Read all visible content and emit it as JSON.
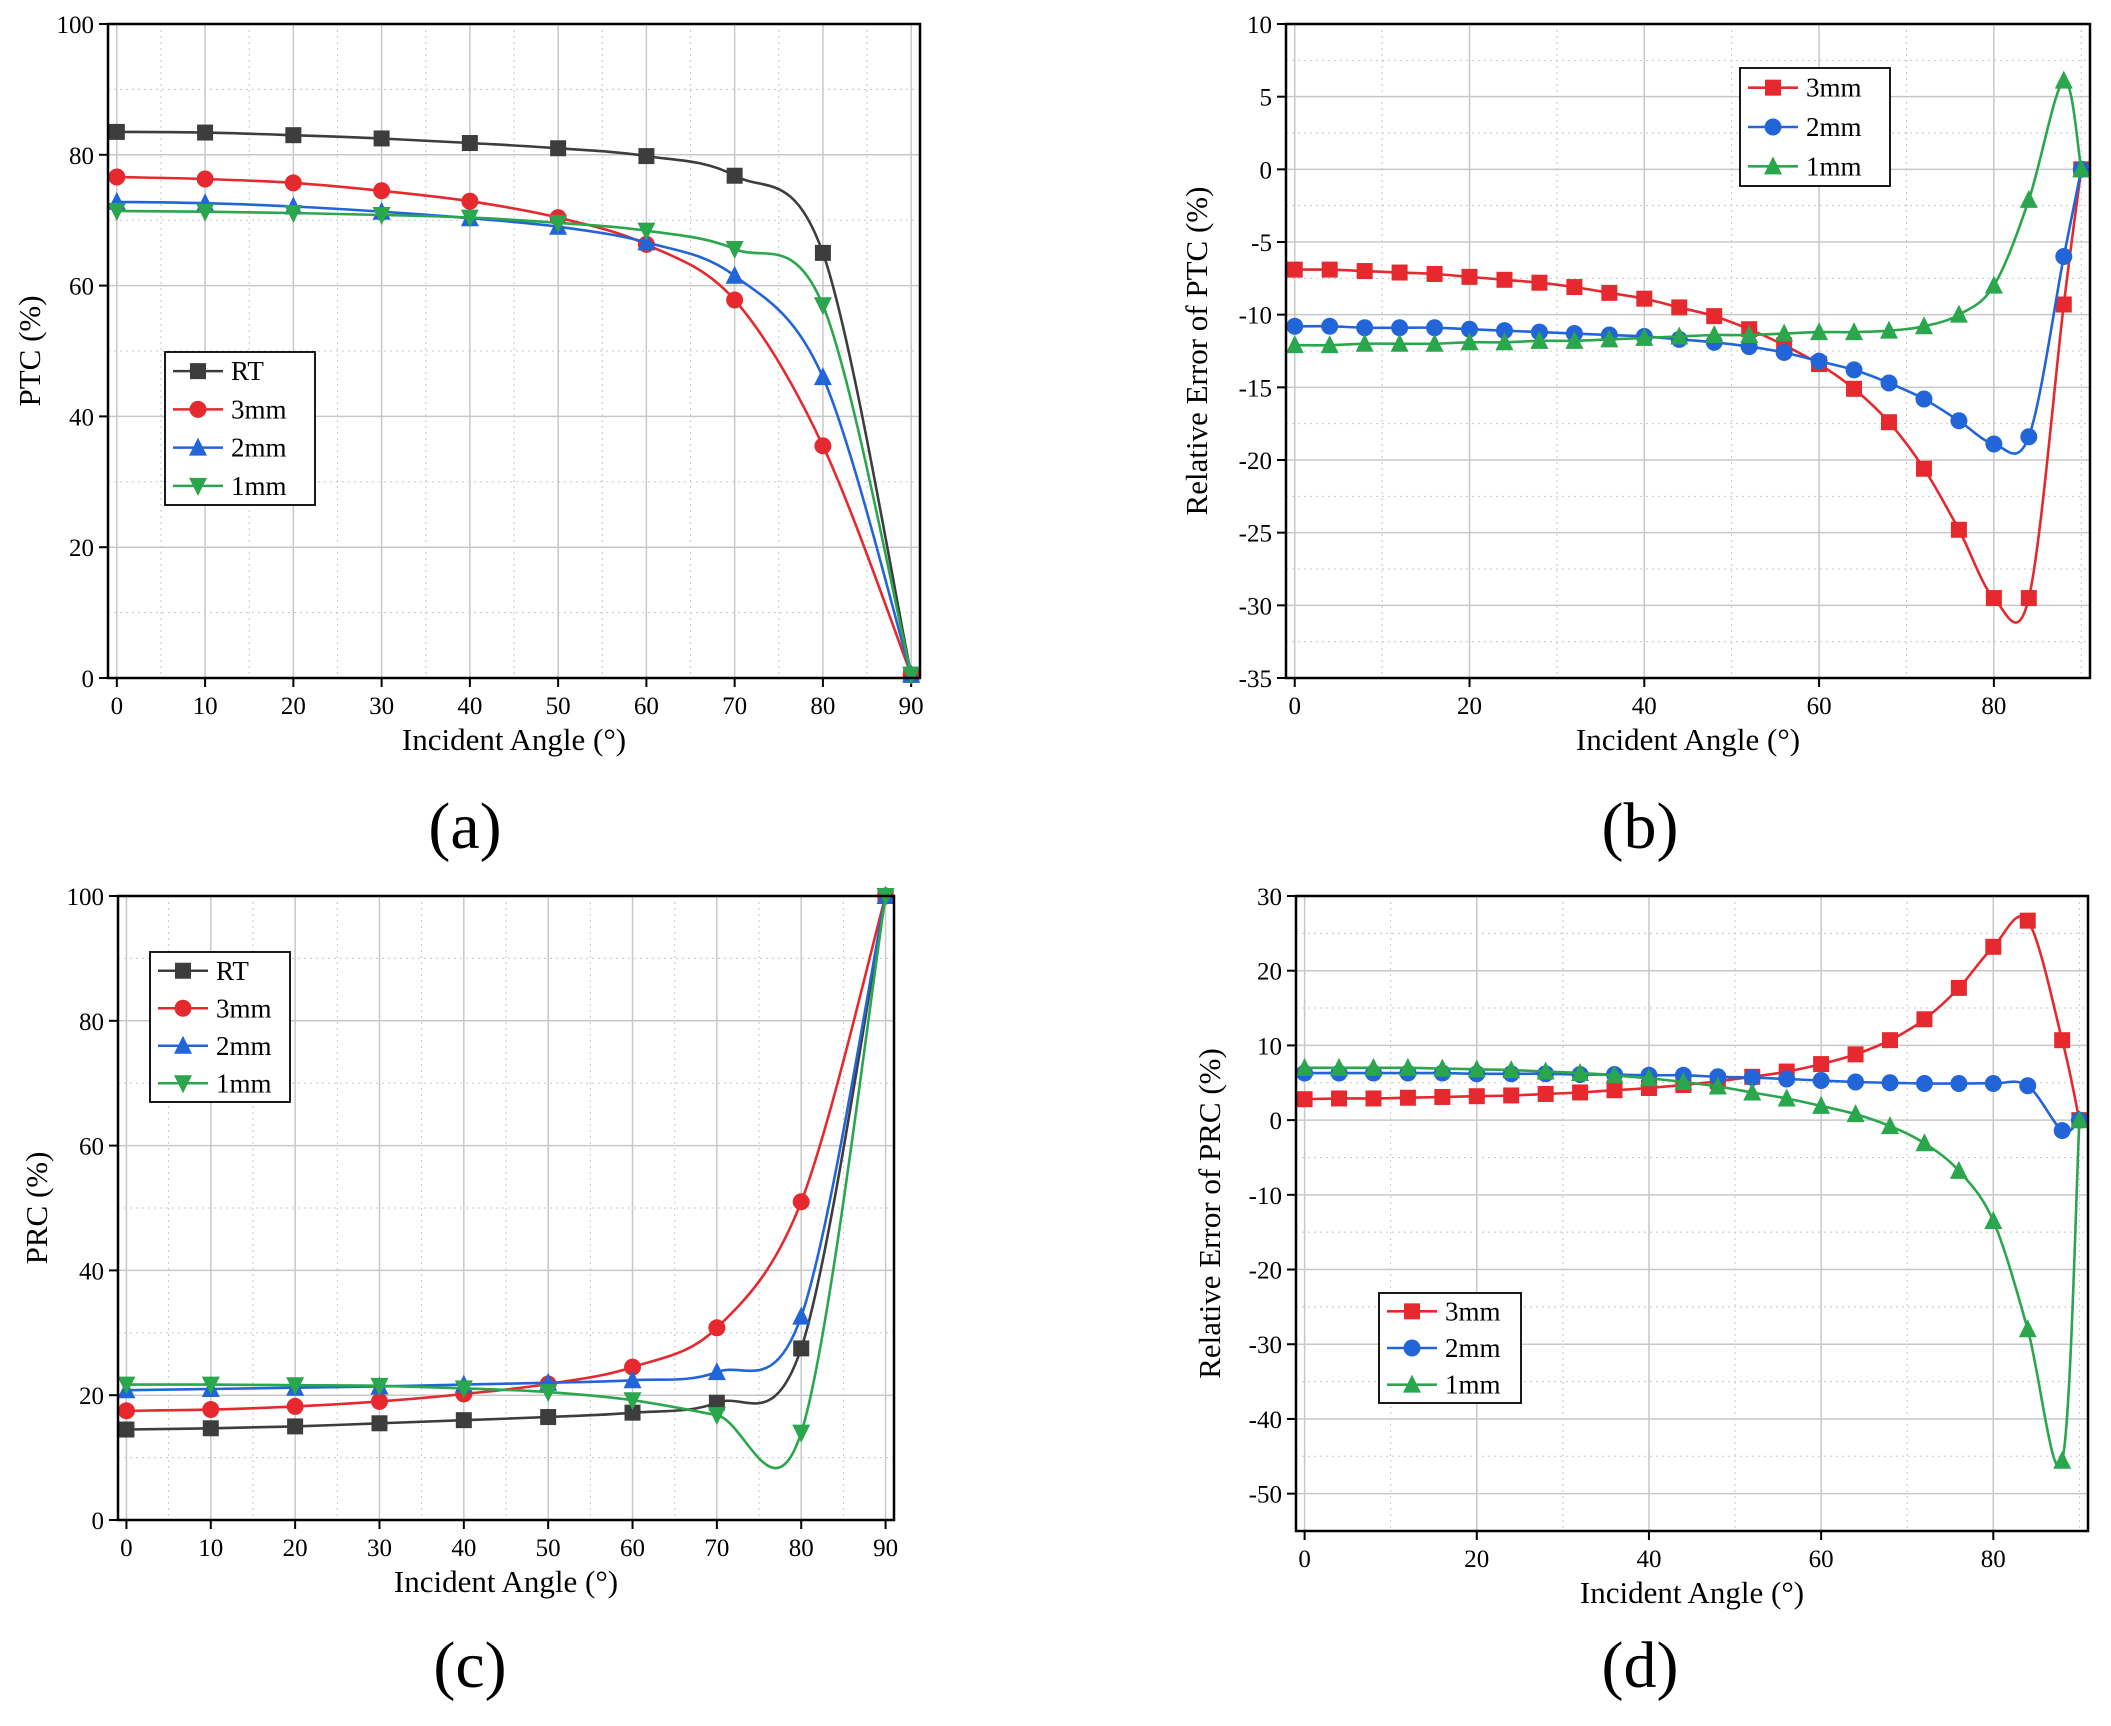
{
  "colors": {
    "RT": "#3d3d3d",
    "3mm": "#e5292e",
    "2mm": "#2265d8",
    "1mm": "#2aa64c",
    "grid": "#c8c8c8"
  },
  "panel_labels": [
    "(a)",
    "(b)",
    "(c)",
    "(d)"
  ],
  "chart_data": [
    {
      "id": "a",
      "type": "line",
      "xlabel": "Incident Angle (°)",
      "ylabel": "PTC (%)",
      "xlim": [
        -1,
        91
      ],
      "ylim": [
        0,
        100
      ],
      "xticks": [
        0,
        10,
        20,
        30,
        40,
        50,
        60,
        70,
        80,
        90
      ],
      "yticks": [
        0,
        20,
        40,
        60,
        80,
        100
      ],
      "legend_position": "middle-left",
      "series": [
        {
          "name": "RT",
          "marker": "square",
          "x": [
            0,
            10,
            20,
            30,
            40,
            50,
            60,
            70,
            80,
            90
          ],
          "y": [
            83.5,
            83.4,
            83,
            82.5,
            81.8,
            81,
            79.8,
            76.8,
            65,
            0.5
          ]
        },
        {
          "name": "3mm",
          "marker": "circle",
          "x": [
            0,
            10,
            20,
            30,
            40,
            50,
            60,
            70,
            80,
            90
          ],
          "y": [
            76.6,
            76.3,
            75.7,
            74.5,
            72.9,
            70.4,
            66.3,
            57.8,
            35.5,
            0.5
          ]
        },
        {
          "name": "2mm",
          "marker": "triangle-up",
          "x": [
            0,
            10,
            20,
            30,
            40,
            50,
            60,
            70,
            80,
            90
          ],
          "y": [
            72.8,
            72.6,
            72.1,
            71.3,
            70.3,
            69,
            66.6,
            61.5,
            46,
            0.5
          ]
        },
        {
          "name": "1mm",
          "marker": "triangle-down",
          "x": [
            0,
            10,
            20,
            30,
            40,
            50,
            60,
            70,
            80,
            90
          ],
          "y": [
            71.4,
            71.3,
            71.1,
            70.8,
            70.4,
            69.6,
            68.4,
            65.6,
            57,
            0.5
          ]
        }
      ]
    },
    {
      "id": "b",
      "type": "line",
      "xlabel": "Incident Angle (°)",
      "ylabel": "Relative Error of PTC (%)",
      "xlim": [
        -1,
        91
      ],
      "ylim": [
        -35,
        10
      ],
      "xticks": [
        0,
        20,
        40,
        60,
        80
      ],
      "yticks": [
        10,
        5,
        0,
        -5,
        -10,
        -15,
        -20,
        -25,
        -30,
        -35
      ],
      "legend_position": "top-right",
      "series": [
        {
          "name": "3mm",
          "marker": "square",
          "x": [
            0,
            4,
            8,
            12,
            16,
            20,
            24,
            28,
            32,
            36,
            40,
            44,
            48,
            52,
            56,
            60,
            64,
            68,
            72,
            76,
            80,
            84,
            88,
            90
          ],
          "y": [
            -6.9,
            -6.9,
            -7,
            -7.1,
            -7.2,
            -7.4,
            -7.6,
            -7.8,
            -8.1,
            -8.5,
            -8.9,
            -9.5,
            -10.1,
            -11,
            -12.1,
            -13.4,
            -15.1,
            -17.4,
            -20.6,
            -24.8,
            -29.5,
            -29.5,
            -9.3,
            0
          ]
        },
        {
          "name": "2mm",
          "marker": "circle",
          "x": [
            0,
            4,
            8,
            12,
            16,
            20,
            24,
            28,
            32,
            36,
            40,
            44,
            48,
            52,
            56,
            60,
            64,
            68,
            72,
            76,
            80,
            84,
            88,
            90
          ],
          "y": [
            -10.8,
            -10.8,
            -10.9,
            -10.9,
            -10.9,
            -11,
            -11.1,
            -11.2,
            -11.3,
            -11.4,
            -11.5,
            -11.7,
            -11.9,
            -12.2,
            -12.6,
            -13.2,
            -13.8,
            -14.7,
            -15.8,
            -17.3,
            -18.9,
            -18.4,
            -6,
            0
          ]
        },
        {
          "name": "1mm",
          "marker": "triangle-up",
          "x": [
            0,
            4,
            8,
            12,
            16,
            20,
            24,
            28,
            32,
            36,
            40,
            44,
            48,
            52,
            56,
            60,
            64,
            68,
            72,
            76,
            80,
            84,
            88,
            90
          ],
          "y": [
            -12.1,
            -12.1,
            -12,
            -12,
            -12,
            -11.9,
            -11.9,
            -11.8,
            -11.8,
            -11.7,
            -11.6,
            -11.5,
            -11.4,
            -11.4,
            -11.3,
            -11.2,
            -11.2,
            -11.1,
            -10.8,
            -10,
            -8,
            -2.1,
            6.1,
            0
          ]
        }
      ]
    },
    {
      "id": "c",
      "type": "line",
      "xlabel": "Incident Angle (°)",
      "ylabel": "PRC (%)",
      "xlim": [
        -1,
        91
      ],
      "ylim": [
        0,
        100
      ],
      "xticks": [
        0,
        10,
        20,
        30,
        40,
        50,
        60,
        70,
        80,
        90
      ],
      "yticks": [
        0,
        20,
        40,
        60,
        80,
        100
      ],
      "legend_position": "top-left",
      "series": [
        {
          "name": "RT",
          "marker": "square",
          "x": [
            0,
            10,
            20,
            30,
            40,
            50,
            60,
            70,
            80,
            90
          ],
          "y": [
            14.5,
            14.7,
            15,
            15.5,
            16,
            16.5,
            17.2,
            18.8,
            27.5,
            100
          ]
        },
        {
          "name": "3mm",
          "marker": "circle",
          "x": [
            0,
            10,
            20,
            30,
            40,
            50,
            60,
            70,
            80,
            90
          ],
          "y": [
            17.5,
            17.7,
            18.2,
            19,
            20.2,
            21.8,
            24.5,
            30.8,
            51,
            100
          ]
        },
        {
          "name": "2mm",
          "marker": "triangle-up",
          "x": [
            0,
            10,
            20,
            30,
            40,
            50,
            60,
            70,
            80,
            90
          ],
          "y": [
            20.8,
            21,
            21.2,
            21.4,
            21.7,
            22,
            22.4,
            23.7,
            32.6,
            100
          ]
        },
        {
          "name": "1mm",
          "marker": "triangle-down",
          "x": [
            0,
            10,
            20,
            30,
            40,
            50,
            60,
            70,
            80,
            90
          ],
          "y": [
            21.7,
            21.7,
            21.6,
            21.5,
            21.1,
            20.5,
            19.2,
            16.8,
            14,
            100
          ]
        }
      ]
    },
    {
      "id": "d",
      "type": "line",
      "xlabel": "Incident Angle (°)",
      "ylabel": "Relative Error of PRC (%)",
      "xlim": [
        -1,
        91
      ],
      "ylim": [
        -55,
        30
      ],
      "xticks": [
        0,
        20,
        40,
        60,
        80
      ],
      "yticks": [
        30,
        20,
        10,
        0,
        -10,
        -20,
        -30,
        -40,
        -50
      ],
      "legend_position": "bottom-left",
      "series": [
        {
          "name": "3mm",
          "marker": "square",
          "x": [
            0,
            4,
            8,
            12,
            16,
            20,
            24,
            28,
            32,
            36,
            40,
            44,
            48,
            52,
            56,
            60,
            64,
            68,
            72,
            76,
            80,
            84,
            88,
            90
          ],
          "y": [
            2.8,
            2.9,
            2.9,
            3,
            3.1,
            3.2,
            3.3,
            3.5,
            3.7,
            4,
            4.3,
            4.7,
            5.2,
            5.8,
            6.5,
            7.5,
            8.8,
            10.7,
            13.5,
            17.7,
            23.2,
            26.7,
            10.7,
            0
          ]
        },
        {
          "name": "2mm",
          "marker": "circle",
          "x": [
            0,
            4,
            8,
            12,
            16,
            20,
            24,
            28,
            32,
            36,
            40,
            44,
            48,
            52,
            56,
            60,
            64,
            68,
            72,
            76,
            80,
            84,
            88,
            90
          ],
          "y": [
            6.3,
            6.3,
            6.3,
            6.3,
            6.3,
            6.2,
            6.2,
            6.2,
            6.1,
            6.1,
            6,
            6,
            5.8,
            5.7,
            5.5,
            5.3,
            5.1,
            5,
            4.9,
            4.9,
            4.9,
            4.6,
            -1.4,
            0
          ]
        },
        {
          "name": "1mm",
          "marker": "triangle-up",
          "x": [
            0,
            4,
            8,
            12,
            16,
            20,
            24,
            28,
            32,
            36,
            40,
            44,
            48,
            52,
            56,
            60,
            64,
            68,
            72,
            76,
            80,
            84,
            88,
            90
          ],
          "y": [
            7,
            7,
            7,
            7,
            6.9,
            6.8,
            6.7,
            6.5,
            6.3,
            6,
            5.6,
            5.1,
            4.5,
            3.7,
            2.9,
            1.9,
            0.8,
            -0.8,
            -3.1,
            -6.8,
            -13.5,
            -28,
            -45.6,
            0
          ]
        }
      ]
    }
  ]
}
